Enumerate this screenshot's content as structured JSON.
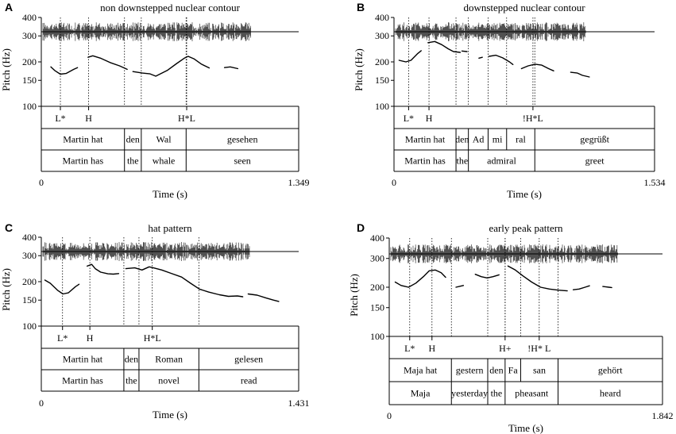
{
  "figure_name": "pitch-track-figure",
  "chart_data": [
    {
      "id": "A",
      "type": "line",
      "title": "non downstepped nuclear contour",
      "ylabel": "Pitch (Hz)",
      "xlabel": "Time (s)",
      "ylim": [
        100,
        400
      ],
      "yticks": [
        400,
        300,
        200,
        150,
        100
      ],
      "xlim": [
        0,
        1.349
      ],
      "xtick_labels": [
        "0",
        "1.349"
      ],
      "tones": [
        {
          "label": "L*",
          "t": 0.1
        },
        {
          "label": "H",
          "t": 0.248
        },
        {
          "label": "H*L",
          "t": 0.762
        }
      ],
      "words": [
        {
          "text": "Martin hat",
          "start": 0.0,
          "end": 0.436
        },
        {
          "text": "den",
          "start": 0.436,
          "end": 0.524
        },
        {
          "text": "Wal",
          "start": 0.524,
          "end": 0.759
        },
        {
          "text": "gesehen",
          "start": 0.759,
          "end": 1.349
        }
      ],
      "gloss": [
        {
          "text": "Martin has",
          "start": 0.0,
          "end": 0.436
        },
        {
          "text": "the",
          "start": 0.436,
          "end": 0.524
        },
        {
          "text": "whale",
          "start": 0.524,
          "end": 0.759
        },
        {
          "text": "seen",
          "start": 0.759,
          "end": 1.349
        }
      ],
      "pitch_segments": [
        [
          [
            0.05,
            185
          ],
          [
            0.07,
            175
          ],
          [
            0.1,
            165
          ],
          [
            0.13,
            167
          ],
          [
            0.17,
            178
          ],
          [
            0.19,
            183
          ]
        ],
        [
          [
            0.245,
            215
          ],
          [
            0.27,
            220
          ],
          [
            0.31,
            212
          ],
          [
            0.36,
            198
          ],
          [
            0.41,
            188
          ],
          [
            0.45,
            178
          ]
        ],
        [
          [
            0.48,
            172
          ],
          [
            0.53,
            168
          ],
          [
            0.57,
            166
          ],
          [
            0.6,
            160
          ],
          [
            0.66,
            175
          ],
          [
            0.71,
            195
          ],
          [
            0.75,
            212
          ],
          [
            0.77,
            218
          ],
          [
            0.8,
            210
          ],
          [
            0.84,
            193
          ],
          [
            0.88,
            182
          ]
        ],
        [
          [
            0.96,
            183
          ],
          [
            0.99,
            185
          ],
          [
            1.03,
            180
          ]
        ]
      ],
      "waveform_span": [
        0.0,
        1.1
      ]
    },
    {
      "id": "B",
      "type": "line",
      "title": "downstepped nuclear contour",
      "ylabel": "Pitch (Hz)",
      "xlabel": "Time (s)",
      "ylim": [
        100,
        400
      ],
      "yticks": [
        400,
        300,
        200,
        150,
        100
      ],
      "xlim": [
        0,
        1.534
      ],
      "xtick_labels": [
        "0",
        "1.534"
      ],
      "tones": [
        {
          "label": "L*",
          "t": 0.086
        },
        {
          "label": "H",
          "t": 0.206
        },
        {
          "label": "!H*L",
          "t": 0.818
        }
      ],
      "words": [
        {
          "text": "Martin hat",
          "start": 0.0,
          "end": 0.365
        },
        {
          "text": "den",
          "start": 0.365,
          "end": 0.438
        },
        {
          "text": "Ad",
          "start": 0.438,
          "end": 0.554
        },
        {
          "text": "mi",
          "start": 0.554,
          "end": 0.663
        },
        {
          "text": "ral",
          "start": 0.663,
          "end": 0.829
        },
        {
          "text": "gegrüßt",
          "start": 0.829,
          "end": 1.534
        }
      ],
      "gloss": [
        {
          "text": "Martin has",
          "start": 0.0,
          "end": 0.365
        },
        {
          "text": "the",
          "start": 0.365,
          "end": 0.438
        },
        {
          "text": "admiral",
          "start": 0.438,
          "end": 0.829
        },
        {
          "text": "greet",
          "start": 0.829,
          "end": 1.534
        }
      ],
      "pitch_segments": [
        [
          [
            0.03,
            205
          ],
          [
            0.07,
            200
          ],
          [
            0.1,
            205
          ],
          [
            0.14,
            228
          ],
          [
            0.16,
            238
          ]
        ],
        [
          [
            0.2,
            270
          ],
          [
            0.24,
            275
          ],
          [
            0.28,
            262
          ],
          [
            0.32,
            245
          ],
          [
            0.35,
            235
          ],
          [
            0.39,
            232
          ]
        ],
        [
          [
            0.4,
            237
          ],
          [
            0.43,
            235
          ]
        ],
        [
          [
            0.5,
            212
          ],
          [
            0.52,
            215
          ]
        ],
        [
          [
            0.56,
            218
          ],
          [
            0.6,
            222
          ],
          [
            0.64,
            213
          ],
          [
            0.68,
            200
          ],
          [
            0.7,
            192
          ]
        ],
        [
          [
            0.75,
            180
          ],
          [
            0.79,
            188
          ],
          [
            0.83,
            193
          ],
          [
            0.87,
            190
          ],
          [
            0.91,
            180
          ],
          [
            0.94,
            174
          ]
        ],
        [
          [
            1.04,
            170
          ],
          [
            1.08,
            168
          ],
          [
            1.11,
            162
          ],
          [
            1.15,
            158
          ]
        ]
      ],
      "waveform_span": [
        0.0,
        1.13
      ]
    },
    {
      "id": "C",
      "type": "line",
      "title": "hat pattern",
      "ylabel": "Pitch (Hz)",
      "xlabel": "Time (s)",
      "ylim": [
        100,
        400
      ],
      "yticks": [
        400,
        300,
        200,
        150,
        100
      ],
      "xlim": [
        0,
        1.431
      ],
      "xtick_labels": [
        "0",
        "1.431"
      ],
      "tones": [
        {
          "label": "L*",
          "t": 0.118
        },
        {
          "label": "H",
          "t": 0.27
        },
        {
          "label": "H*L",
          "t": 0.617
        }
      ],
      "words": [
        {
          "text": "Martin hat",
          "start": 0.0,
          "end": 0.459
        },
        {
          "text": "den",
          "start": 0.459,
          "end": 0.543
        },
        {
          "text": "Roman",
          "start": 0.543,
          "end": 0.876
        },
        {
          "text": "gelesen",
          "start": 0.876,
          "end": 1.431
        }
      ],
      "gloss": [
        {
          "text": "Martin has",
          "start": 0.0,
          "end": 0.459
        },
        {
          "text": "the",
          "start": 0.459,
          "end": 0.543
        },
        {
          "text": "novel",
          "start": 0.543,
          "end": 0.876
        },
        {
          "text": "read",
          "start": 0.876,
          "end": 1.431
        }
      ],
      "pitch_segments": [
        [
          [
            0.02,
            205
          ],
          [
            0.05,
            195
          ],
          [
            0.09,
            175
          ],
          [
            0.12,
            165
          ],
          [
            0.15,
            168
          ],
          [
            0.19,
            185
          ],
          [
            0.21,
            192
          ]
        ],
        [
          [
            0.255,
            255
          ],
          [
            0.28,
            262
          ],
          [
            0.3,
            245
          ],
          [
            0.33,
            232
          ],
          [
            0.37,
            226
          ],
          [
            0.4,
            225
          ],
          [
            0.43,
            227
          ]
        ],
        [
          [
            0.47,
            245
          ],
          [
            0.52,
            248
          ],
          [
            0.56,
            240
          ],
          [
            0.6,
            252
          ],
          [
            0.63,
            247
          ],
          [
            0.67,
            240
          ],
          [
            0.72,
            228
          ],
          [
            0.78,
            215
          ],
          [
            0.83,
            195
          ],
          [
            0.88,
            178
          ],
          [
            0.93,
            170
          ],
          [
            0.99,
            163
          ],
          [
            1.04,
            159
          ],
          [
            1.09,
            160
          ],
          [
            1.12,
            158
          ]
        ],
        [
          [
            1.15,
            165
          ],
          [
            1.2,
            162
          ],
          [
            1.25,
            155
          ],
          [
            1.29,
            150
          ],
          [
            1.32,
            147
          ]
        ]
      ],
      "waveform_span": [
        0.0,
        1.16
      ]
    },
    {
      "id": "D",
      "type": "line",
      "title": "early peak pattern",
      "ylabel": "Pitch (Hz)",
      "xlabel": "Time (s)",
      "ylim": [
        100,
        400
      ],
      "yticks": [
        400,
        300,
        200,
        150,
        100
      ],
      "xlim": [
        0,
        1.842
      ],
      "xtick_labels": [
        "0",
        "1.842"
      ],
      "tones": [
        {
          "label": "L*",
          "t": 0.138
        },
        {
          "label": "H",
          "t": 0.288
        },
        {
          "label": "H+",
          "t": 0.781
        },
        {
          "label": "!H* L",
          "t": 1.011
        }
      ],
      "words": [
        {
          "text": "Maja hat",
          "start": 0.0,
          "end": 0.419
        },
        {
          "text": "gestern",
          "start": 0.419,
          "end": 0.664
        },
        {
          "text": "den",
          "start": 0.664,
          "end": 0.781
        },
        {
          "text": "Fa",
          "start": 0.781,
          "end": 0.886
        },
        {
          "text": "san",
          "start": 0.886,
          "end": 1.138
        },
        {
          "text": "gehört",
          "start": 1.138,
          "end": 1.842
        }
      ],
      "gloss": [
        {
          "text": "Maja",
          "start": 0.0,
          "end": 0.419
        },
        {
          "text": "yesterday",
          "start": 0.419,
          "end": 0.664
        },
        {
          "text": "the",
          "start": 0.664,
          "end": 0.781
        },
        {
          "text": "pheasant",
          "start": 0.781,
          "end": 1.138
        },
        {
          "text": "heard",
          "start": 1.138,
          "end": 1.842
        }
      ],
      "pitch_segments": [
        [
          [
            0.04,
            215
          ],
          [
            0.08,
            205
          ],
          [
            0.13,
            200
          ],
          [
            0.18,
            212
          ],
          [
            0.23,
            232
          ],
          [
            0.27,
            252
          ],
          [
            0.31,
            255
          ],
          [
            0.35,
            245
          ],
          [
            0.38,
            230
          ]
        ],
        [
          [
            0.45,
            200
          ],
          [
            0.48,
            203
          ],
          [
            0.5,
            205
          ]
        ],
        [
          [
            0.58,
            240
          ],
          [
            0.62,
            232
          ],
          [
            0.66,
            228
          ],
          [
            0.7,
            232
          ],
          [
            0.74,
            238
          ]
        ],
        [
          [
            0.8,
            270
          ],
          [
            0.85,
            255
          ],
          [
            0.9,
            235
          ],
          [
            0.96,
            215
          ],
          [
            1.02,
            200
          ],
          [
            1.08,
            195
          ],
          [
            1.14,
            192
          ],
          [
            1.2,
            190
          ]
        ],
        [
          [
            1.24,
            193
          ],
          [
            1.28,
            195
          ],
          [
            1.32,
            200
          ],
          [
            1.35,
            204
          ]
        ],
        [
          [
            1.44,
            202
          ],
          [
            1.48,
            200
          ],
          [
            1.5,
            199
          ]
        ]
      ],
      "waveform_span": [
        0.0,
        1.54
      ]
    }
  ]
}
